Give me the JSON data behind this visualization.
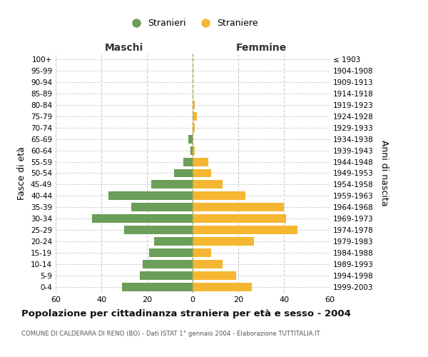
{
  "age_groups": [
    "100+",
    "95-99",
    "90-94",
    "85-89",
    "80-84",
    "75-79",
    "70-74",
    "65-69",
    "60-64",
    "55-59",
    "50-54",
    "45-49",
    "40-44",
    "35-39",
    "30-34",
    "25-29",
    "20-24",
    "15-19",
    "10-14",
    "5-9",
    "0-4"
  ],
  "birth_years": [
    "≤ 1903",
    "1904-1908",
    "1909-1913",
    "1914-1918",
    "1919-1923",
    "1924-1928",
    "1929-1933",
    "1934-1938",
    "1939-1943",
    "1944-1948",
    "1949-1953",
    "1954-1958",
    "1959-1963",
    "1964-1968",
    "1969-1973",
    "1974-1978",
    "1979-1983",
    "1984-1988",
    "1989-1993",
    "1994-1998",
    "1999-2003"
  ],
  "males": [
    0,
    0,
    0,
    0,
    0,
    0,
    0,
    2,
    1,
    4,
    8,
    18,
    37,
    27,
    44,
    30,
    17,
    19,
    22,
    23,
    31
  ],
  "females": [
    0,
    0,
    0,
    0,
    1,
    2,
    1,
    0,
    1,
    7,
    8,
    13,
    23,
    40,
    41,
    46,
    27,
    8,
    13,
    19,
    26
  ],
  "male_color": "#6b9e58",
  "female_color": "#f5b731",
  "center_line_color": "#aaa855",
  "grid_color": "#cccccc",
  "background_color": "#ffffff",
  "title": "Popolazione per cittadinanza straniera per età e sesso - 2004",
  "subtitle": "COMUNE DI CALDERARA DI RENO (BO) - Dati ISTAT 1° gennaio 2004 - Elaborazione TUTTITALIA.IT",
  "ylabel_left": "Fasce di età",
  "ylabel_right": "Anni di nascita",
  "xlabel_maschi": "Maschi",
  "xlabel_femmine": "Femmine",
  "legend_stranieri": "Stranieri",
  "legend_straniere": "Straniere",
  "xlim": 60
}
